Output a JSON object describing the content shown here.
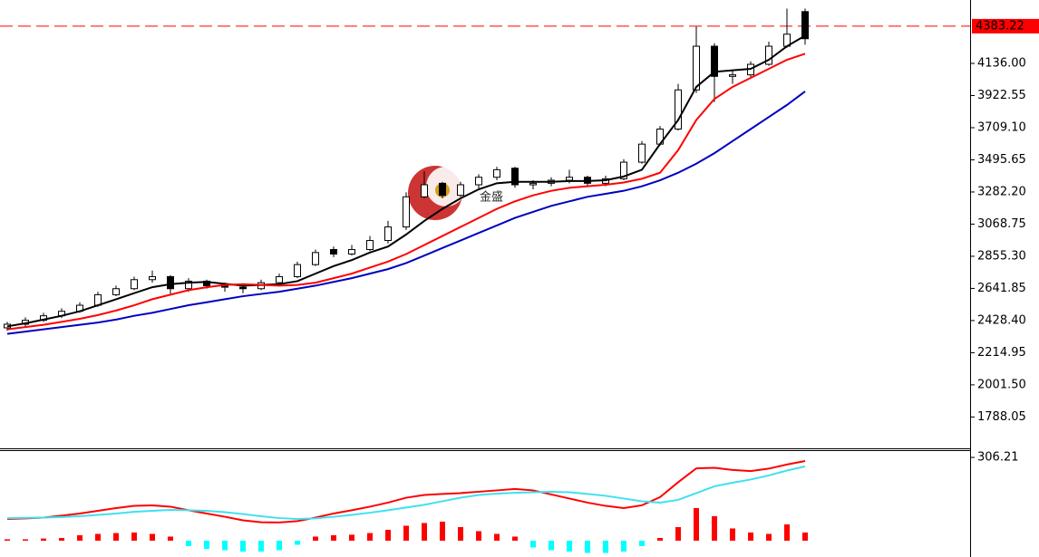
{
  "chart_data": [
    {
      "type": "candlestick",
      "watermark": "金盛",
      "open": [
        2380,
        2404,
        2430,
        2460,
        2490,
        2530,
        2600,
        2640,
        2700,
        2720,
        2640,
        2690,
        2660,
        2650,
        2640,
        2680,
        2720,
        2800,
        2900,
        2870,
        2900,
        2960,
        3050,
        3250,
        3340,
        3260,
        3330,
        3380,
        3440,
        3330,
        3340,
        3360,
        3380,
        3340,
        3370,
        3480,
        3600,
        3700,
        3960,
        4250,
        4050,
        4060,
        4130,
        4250,
        4480
      ],
      "high": [
        2420,
        2450,
        2480,
        2510,
        2550,
        2620,
        2660,
        2720,
        2760,
        2730,
        2710,
        2700,
        2680,
        2670,
        2700,
        2740,
        2820,
        2900,
        2920,
        2930,
        2990,
        3090,
        3280,
        3420,
        3350,
        3350,
        3400,
        3450,
        3450,
        3360,
        3380,
        3430,
        3390,
        3390,
        3500,
        3620,
        3720,
        4000,
        4380,
        4270,
        4090,
        4150,
        4280,
        4500,
        4500
      ],
      "low": [
        2360,
        2390,
        2420,
        2445,
        2480,
        2520,
        2590,
        2630,
        2680,
        2600,
        2620,
        2640,
        2620,
        2610,
        2630,
        2670,
        2710,
        2790,
        2850,
        2860,
        2890,
        2940,
        3030,
        3240,
        3240,
        3250,
        3300,
        3360,
        3310,
        3300,
        3320,
        3340,
        3320,
        3320,
        3360,
        3470,
        3590,
        3690,
        3940,
        3880,
        4000,
        4040,
        4120,
        4240,
        4260
      ],
      "close": [
        2404,
        2430,
        2460,
        2490,
        2530,
        2600,
        2640,
        2700,
        2720,
        2640,
        2690,
        2660,
        2650,
        2640,
        2680,
        2720,
        2800,
        2880,
        2870,
        2900,
        2960,
        3050,
        3250,
        3330,
        3260,
        3330,
        3380,
        3430,
        3330,
        3340,
        3360,
        3380,
        3340,
        3370,
        3480,
        3600,
        3700,
        3960,
        4250,
        4050,
        4060,
        4130,
        4250,
        4330,
        4300
      ],
      "up_color": "#ffffff",
      "down_color": "#000000",
      "outline_color": "#000000",
      "series": [
        {
          "color": "#000000",
          "values": [
            2390,
            2410,
            2435,
            2460,
            2490,
            2530,
            2570,
            2610,
            2650,
            2670,
            2680,
            2685,
            2672,
            2660,
            2665,
            2670,
            2690,
            2740,
            2790,
            2830,
            2880,
            2920,
            3000,
            3090,
            3170,
            3240,
            3300,
            3340,
            3350,
            3350,
            3350,
            3355,
            3355,
            3360,
            3385,
            3430,
            3600,
            3760,
            3980,
            4080,
            4090,
            4100,
            4160,
            4250,
            4320
          ]
        },
        {
          "color": "#ff0000",
          "values": [
            2370,
            2385,
            2400,
            2420,
            2440,
            2465,
            2495,
            2530,
            2570,
            2600,
            2630,
            2650,
            2665,
            2670,
            2665,
            2660,
            2665,
            2680,
            2710,
            2740,
            2780,
            2820,
            2870,
            2930,
            2990,
            3050,
            3110,
            3170,
            3220,
            3260,
            3290,
            3310,
            3320,
            3330,
            3345,
            3370,
            3410,
            3560,
            3760,
            3900,
            3980,
            4040,
            4100,
            4160,
            4200
          ]
        },
        {
          "color": "#0000c0",
          "values": [
            2340,
            2355,
            2370,
            2385,
            2400,
            2415,
            2435,
            2460,
            2480,
            2505,
            2530,
            2550,
            2570,
            2590,
            2605,
            2620,
            2640,
            2660,
            2685,
            2710,
            2740,
            2770,
            2810,
            2860,
            2910,
            2960,
            3010,
            3060,
            3110,
            3150,
            3190,
            3220,
            3250,
            3270,
            3290,
            3320,
            3360,
            3410,
            3470,
            3540,
            3620,
            3700,
            3780,
            3860,
            3950
          ]
        }
      ],
      "price_line": {
        "value": 4383.22,
        "label": "4383.22",
        "color": "#ff0000"
      },
      "ylim": [
        1580,
        4557
      ],
      "yticks": [
        {
          "value": 4136,
          "label": "4136.00"
        },
        {
          "value": 3922.55,
          "label": "3922.55"
        },
        {
          "value": 3709.1,
          "label": "3709.10"
        },
        {
          "value": 3495.65,
          "label": "3495.65"
        },
        {
          "value": 3282.2,
          "label": "3282.20"
        },
        {
          "value": 3068.75,
          "label": "3068.75"
        },
        {
          "value": 2855.3,
          "label": "2855.30"
        },
        {
          "value": 2641.85,
          "label": "2641.85"
        },
        {
          "value": 2428.4,
          "label": "2428.40"
        },
        {
          "value": 2214.95,
          "label": "2214.95"
        },
        {
          "value": 2001.5,
          "label": "2001.50"
        },
        {
          "value": 1788.05,
          "label": "1788.05"
        }
      ]
    },
    {
      "type": "macd",
      "histogram": [
        5,
        5,
        8,
        10,
        20,
        25,
        28,
        30,
        25,
        15,
        -20,
        -30,
        -35,
        -40,
        -40,
        -35,
        -15,
        15,
        20,
        22,
        28,
        40,
        55,
        65,
        70,
        50,
        35,
        25,
        15,
        -25,
        -35,
        -40,
        -45,
        -45,
        -40,
        -20,
        10,
        50,
        120,
        90,
        45,
        30,
        25,
        60,
        30
      ],
      "positive_color": "#ff0000",
      "negative_color": "#00ffff",
      "series": [
        {
          "color": "#ff0000",
          "values": [
            80,
            82,
            85,
            92,
            100,
            110,
            120,
            128,
            130,
            125,
            112,
            100,
            88,
            75,
            68,
            67,
            72,
            85,
            100,
            112,
            125,
            140,
            158,
            168,
            172,
            175,
            180,
            185,
            190,
            185,
            170,
            155,
            140,
            128,
            120,
            130,
            160,
            215,
            266,
            268,
            260,
            256,
            265,
            280,
            293
          ]
        },
        {
          "color": "#40e0f0",
          "values": [
            83,
            84,
            85,
            87,
            90,
            95,
            100,
            106,
            110,
            113,
            112,
            110,
            105,
            98,
            90,
            83,
            80,
            82,
            88,
            95,
            103,
            112,
            122,
            132,
            145,
            158,
            168,
            173,
            176,
            178,
            180,
            178,
            172,
            165,
            155,
            145,
            140,
            150,
            175,
            200,
            213,
            225,
            240,
            258,
            273
          ]
        }
      ],
      "ylim": [
        -60,
        333
      ],
      "yticks": [
        306.21
      ]
    }
  ]
}
